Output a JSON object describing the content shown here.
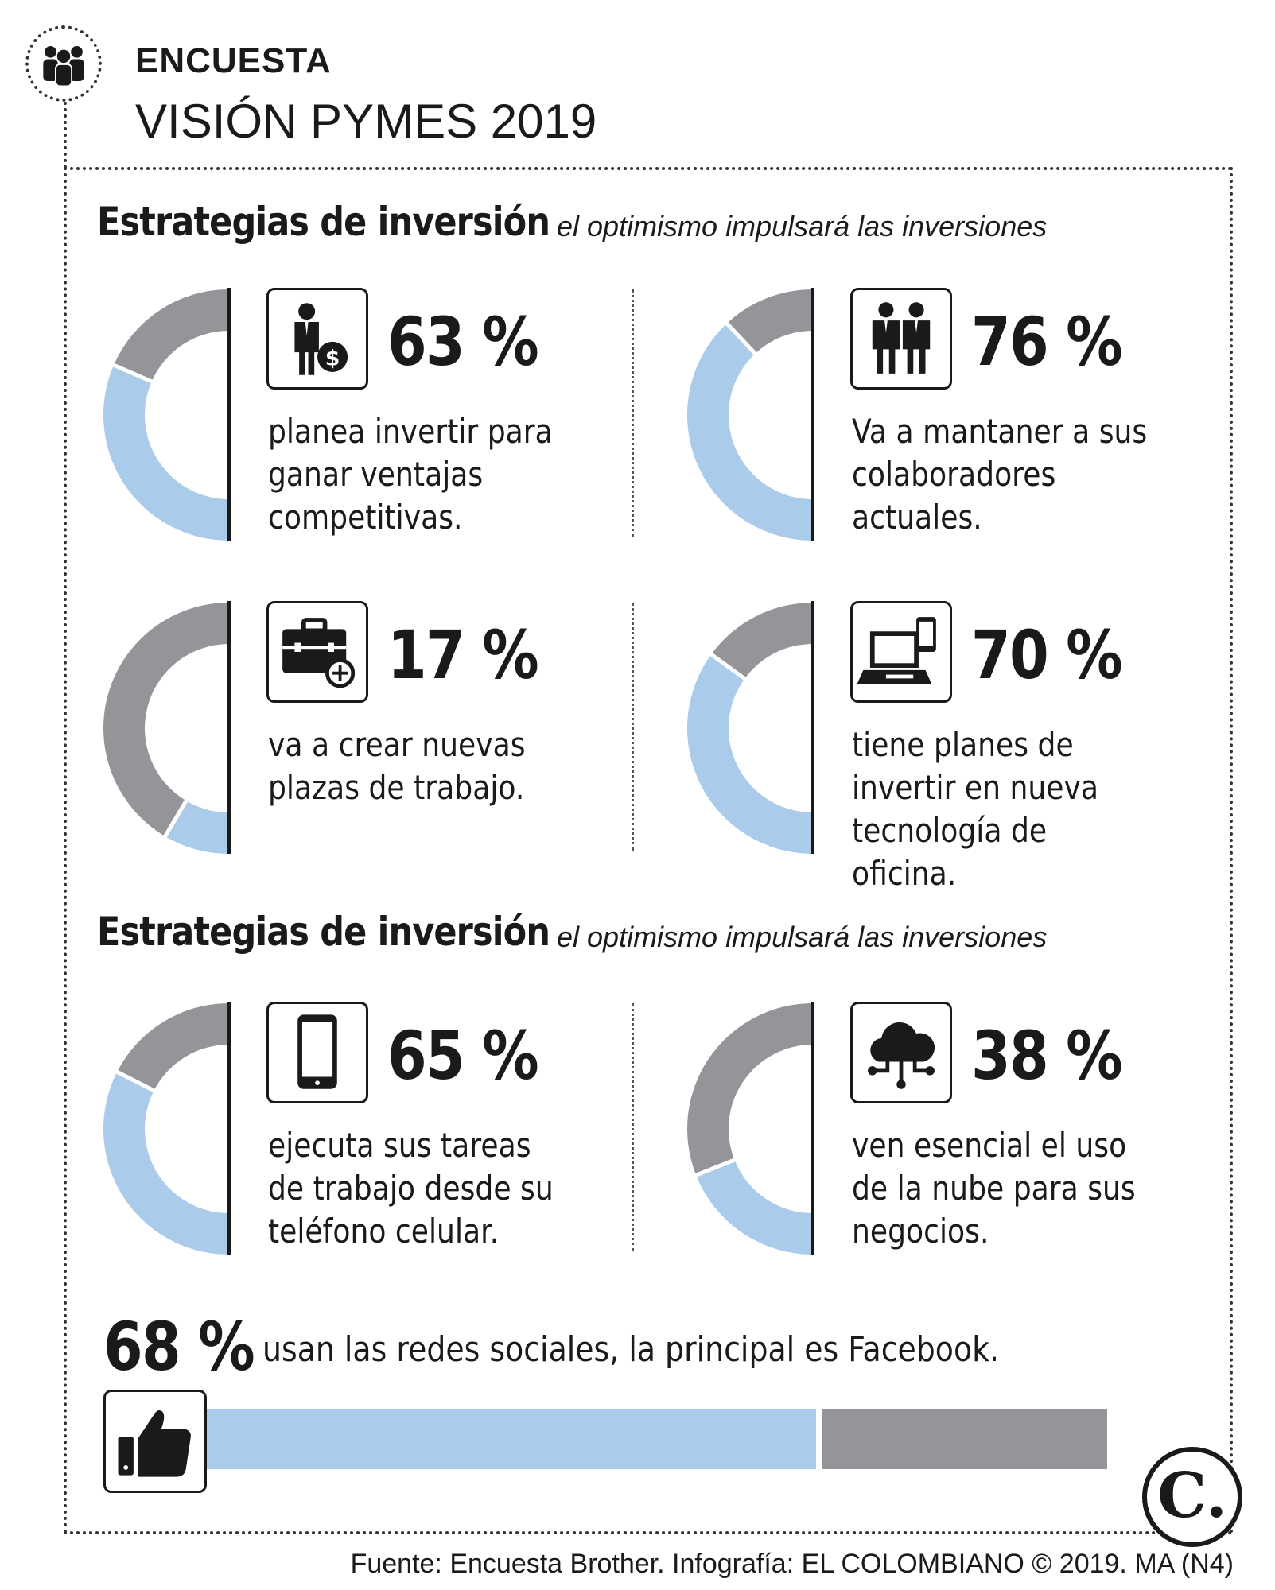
{
  "header": {
    "kicker": "ENCUESTA",
    "title": "VISIÓN PYMES 2019",
    "icon": "people-group-icon"
  },
  "sections": [
    {
      "title": "Estrategias de inversión",
      "subtitle": "el optimismo impulsará las inversiones"
    },
    {
      "title": "Estrategias de inversión",
      "subtitle": "el optimismo impulsará las inversiones"
    }
  ],
  "colors": {
    "highlight": "#abcbeb",
    "rest": "#949598",
    "ink": "#1a1a1a"
  },
  "chart_data": {
    "type": "pie",
    "subtype": "half-donut",
    "items": [
      {
        "value": 63,
        "label": "63 %",
        "text": "planea invertir para ganar ventajas competitivas.",
        "icon": "businessman-money-icon"
      },
      {
        "value": 76,
        "label": "76 %",
        "text": "Va a mantaner a sus colaboradores actuales.",
        "icon": "two-people-icon"
      },
      {
        "value": 17,
        "label": "17 %",
        "text": "va a crear nuevas plazas de trabajo.",
        "icon": "briefcase-plus-icon"
      },
      {
        "value": 70,
        "label": "70 %",
        "text": "tiene planes de invertir en nueva tecnología de oficina.",
        "icon": "laptop-phone-icon"
      },
      {
        "value": 65,
        "label": "65 %",
        "text": "ejecuta sus tareas de trabajo desde su teléfono celular.",
        "icon": "smartphone-icon"
      },
      {
        "value": 38,
        "label": "38 %",
        "text": "ven esencial el uso de la nube para sus negocios.",
        "icon": "cloud-network-icon"
      }
    ],
    "summary": {
      "value": 68,
      "label": "68 %",
      "text": "usan las redes sociales, la principal es Facebook.",
      "icon": "thumbs-up-icon"
    }
  },
  "footer": {
    "logo_letter": "C.",
    "source": "Fuente: Encuesta Brother. Infografía: EL COLOMBIANO © 2019. MA (N4)"
  }
}
